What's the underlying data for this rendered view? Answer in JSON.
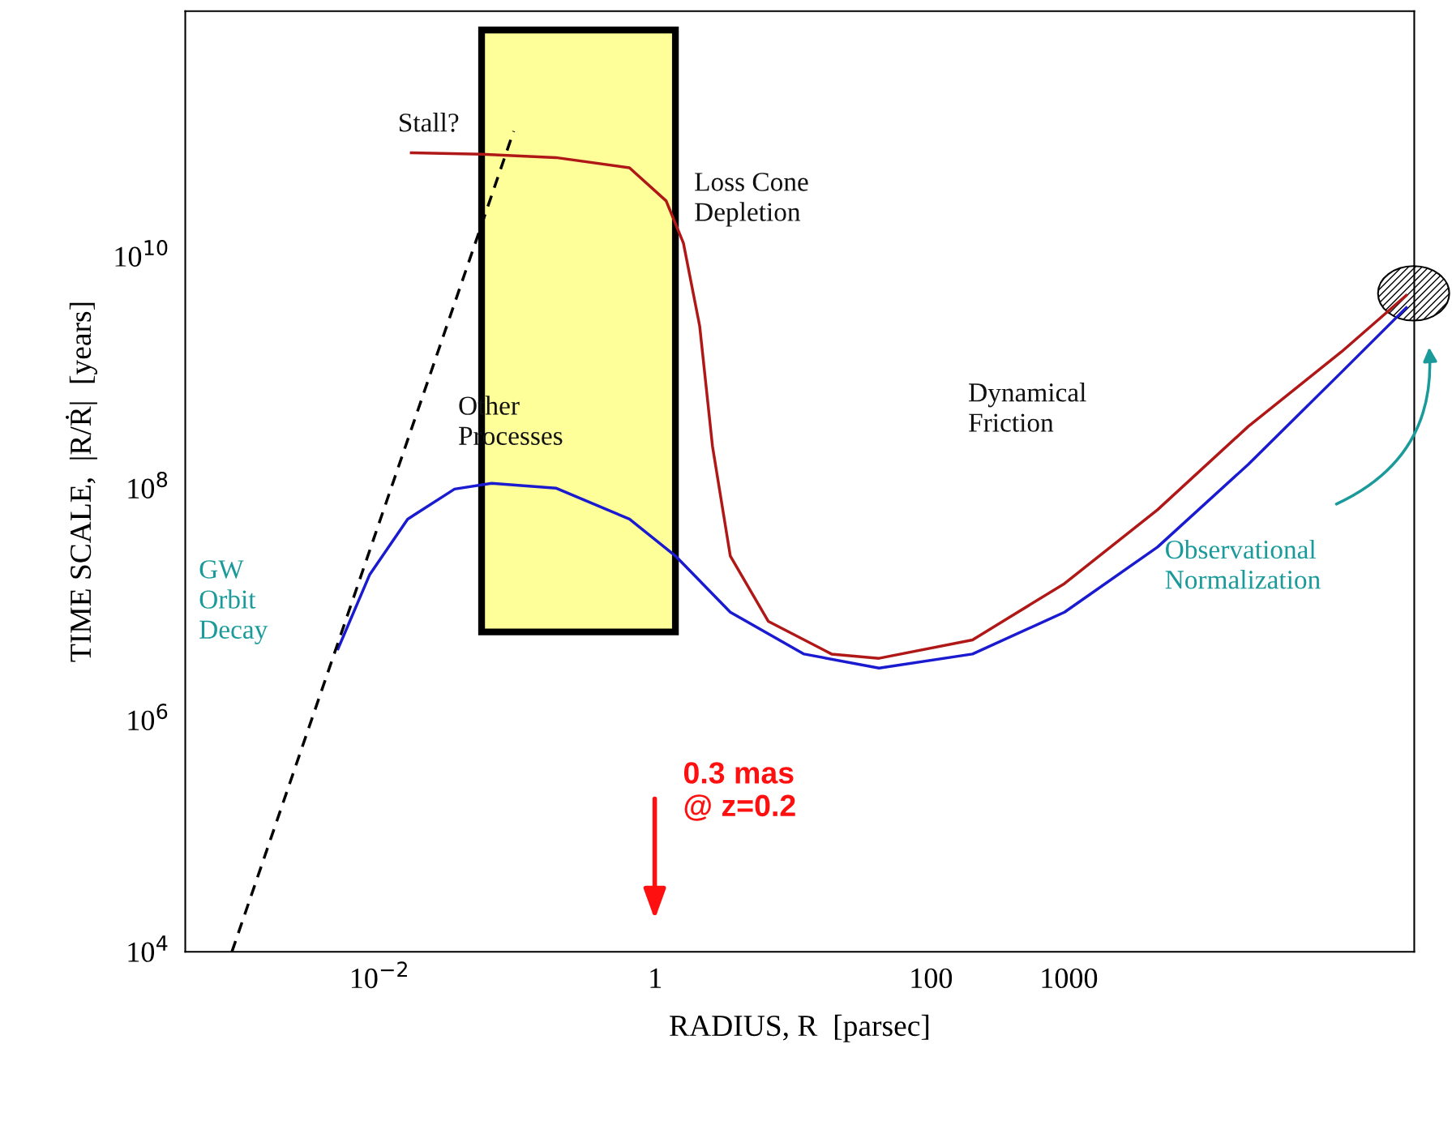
{
  "chart_data": {
    "type": "line",
    "xlabel": "RADIUS, R  [parsec]",
    "ylabel": "TIME SCALE,  |R/Ṙ|  [years]",
    "log": "xy",
    "grid": false,
    "legend": false,
    "marker": "none",
    "xlim": [
      0.00039,
      320000
    ],
    "ylim": [
      10000,
      1300000000000.0
    ],
    "xticks": [
      {
        "value": 0.01,
        "label": "10$^{−2}$"
      },
      1,
      100,
      1000
    ],
    "yticks": [
      {
        "value": 10000,
        "label": "10$^{4}$"
      },
      {
        "value": 1000000,
        "label": "10$^{6}$"
      },
      {
        "value": 100000000,
        "label": "10$^{8}$"
      },
      {
        "value": 10000000000,
        "label": "10$^{10}$"
      }
    ],
    "series": [
      {
        "color": "#1a1ad0",
        "line_style": "solid",
        "x": [
          0.005,
          0.0085,
          0.016,
          0.035,
          0.065,
          0.19,
          0.65,
          1.4,
          3.5,
          12,
          42,
          200,
          930,
          4400,
          20000,
          95000,
          280000
        ],
        "values": [
          4100000.0,
          18000000.0,
          54000000.0,
          98000000.0,
          110000000.0,
          100000000.0,
          54000000.0,
          26000000.0,
          8500000.0,
          3700000.0,
          2800000.0,
          3700000.0,
          8500000.0,
          31000000.0,
          160000000.0,
          1000000000.0,
          3600000000.0
        ]
      },
      {
        "color": "#b01818",
        "line_style": "solid",
        "x": [
          0.017,
          0.055,
          0.19,
          0.65,
          1.2,
          1.6,
          2.1,
          2.6,
          3.5,
          6.6,
          19,
          42,
          200,
          930,
          4400,
          20000,
          95000,
          280000
        ],
        "values": [
          78000000000.0,
          76000000000.0,
          71000000000.0,
          58000000000.0,
          30000000000.0,
          13000000000.0,
          2500000000.0,
          230000000.0,
          26000000.0,
          7100000.0,
          3700000.0,
          3400000.0,
          4900000.0,
          15000000.0,
          65000000.0,
          340000000.0,
          1500000000.0,
          4600000000.0
        ]
      },
      {
        "color": "#000000",
        "line_style": "dashed",
        "x": [
          0.00085,
          0.094
        ],
        "values": [
          10000,
          120000000000.0
        ]
      }
    ],
    "bands": [
      {
        "axis": "x",
        "from": 0.055,
        "to": 1.4,
        "color": "#ffff99"
      }
    ],
    "annotations": [
      "Stall?",
      "Loss Cone\nDepletion",
      "Other\nProcesses",
      "Dynamical\nFriction",
      "GW\nOrbit\nDecay",
      "Observational\nNormalization",
      "0.3 mas\n@ z=0.2"
    ]
  }
}
